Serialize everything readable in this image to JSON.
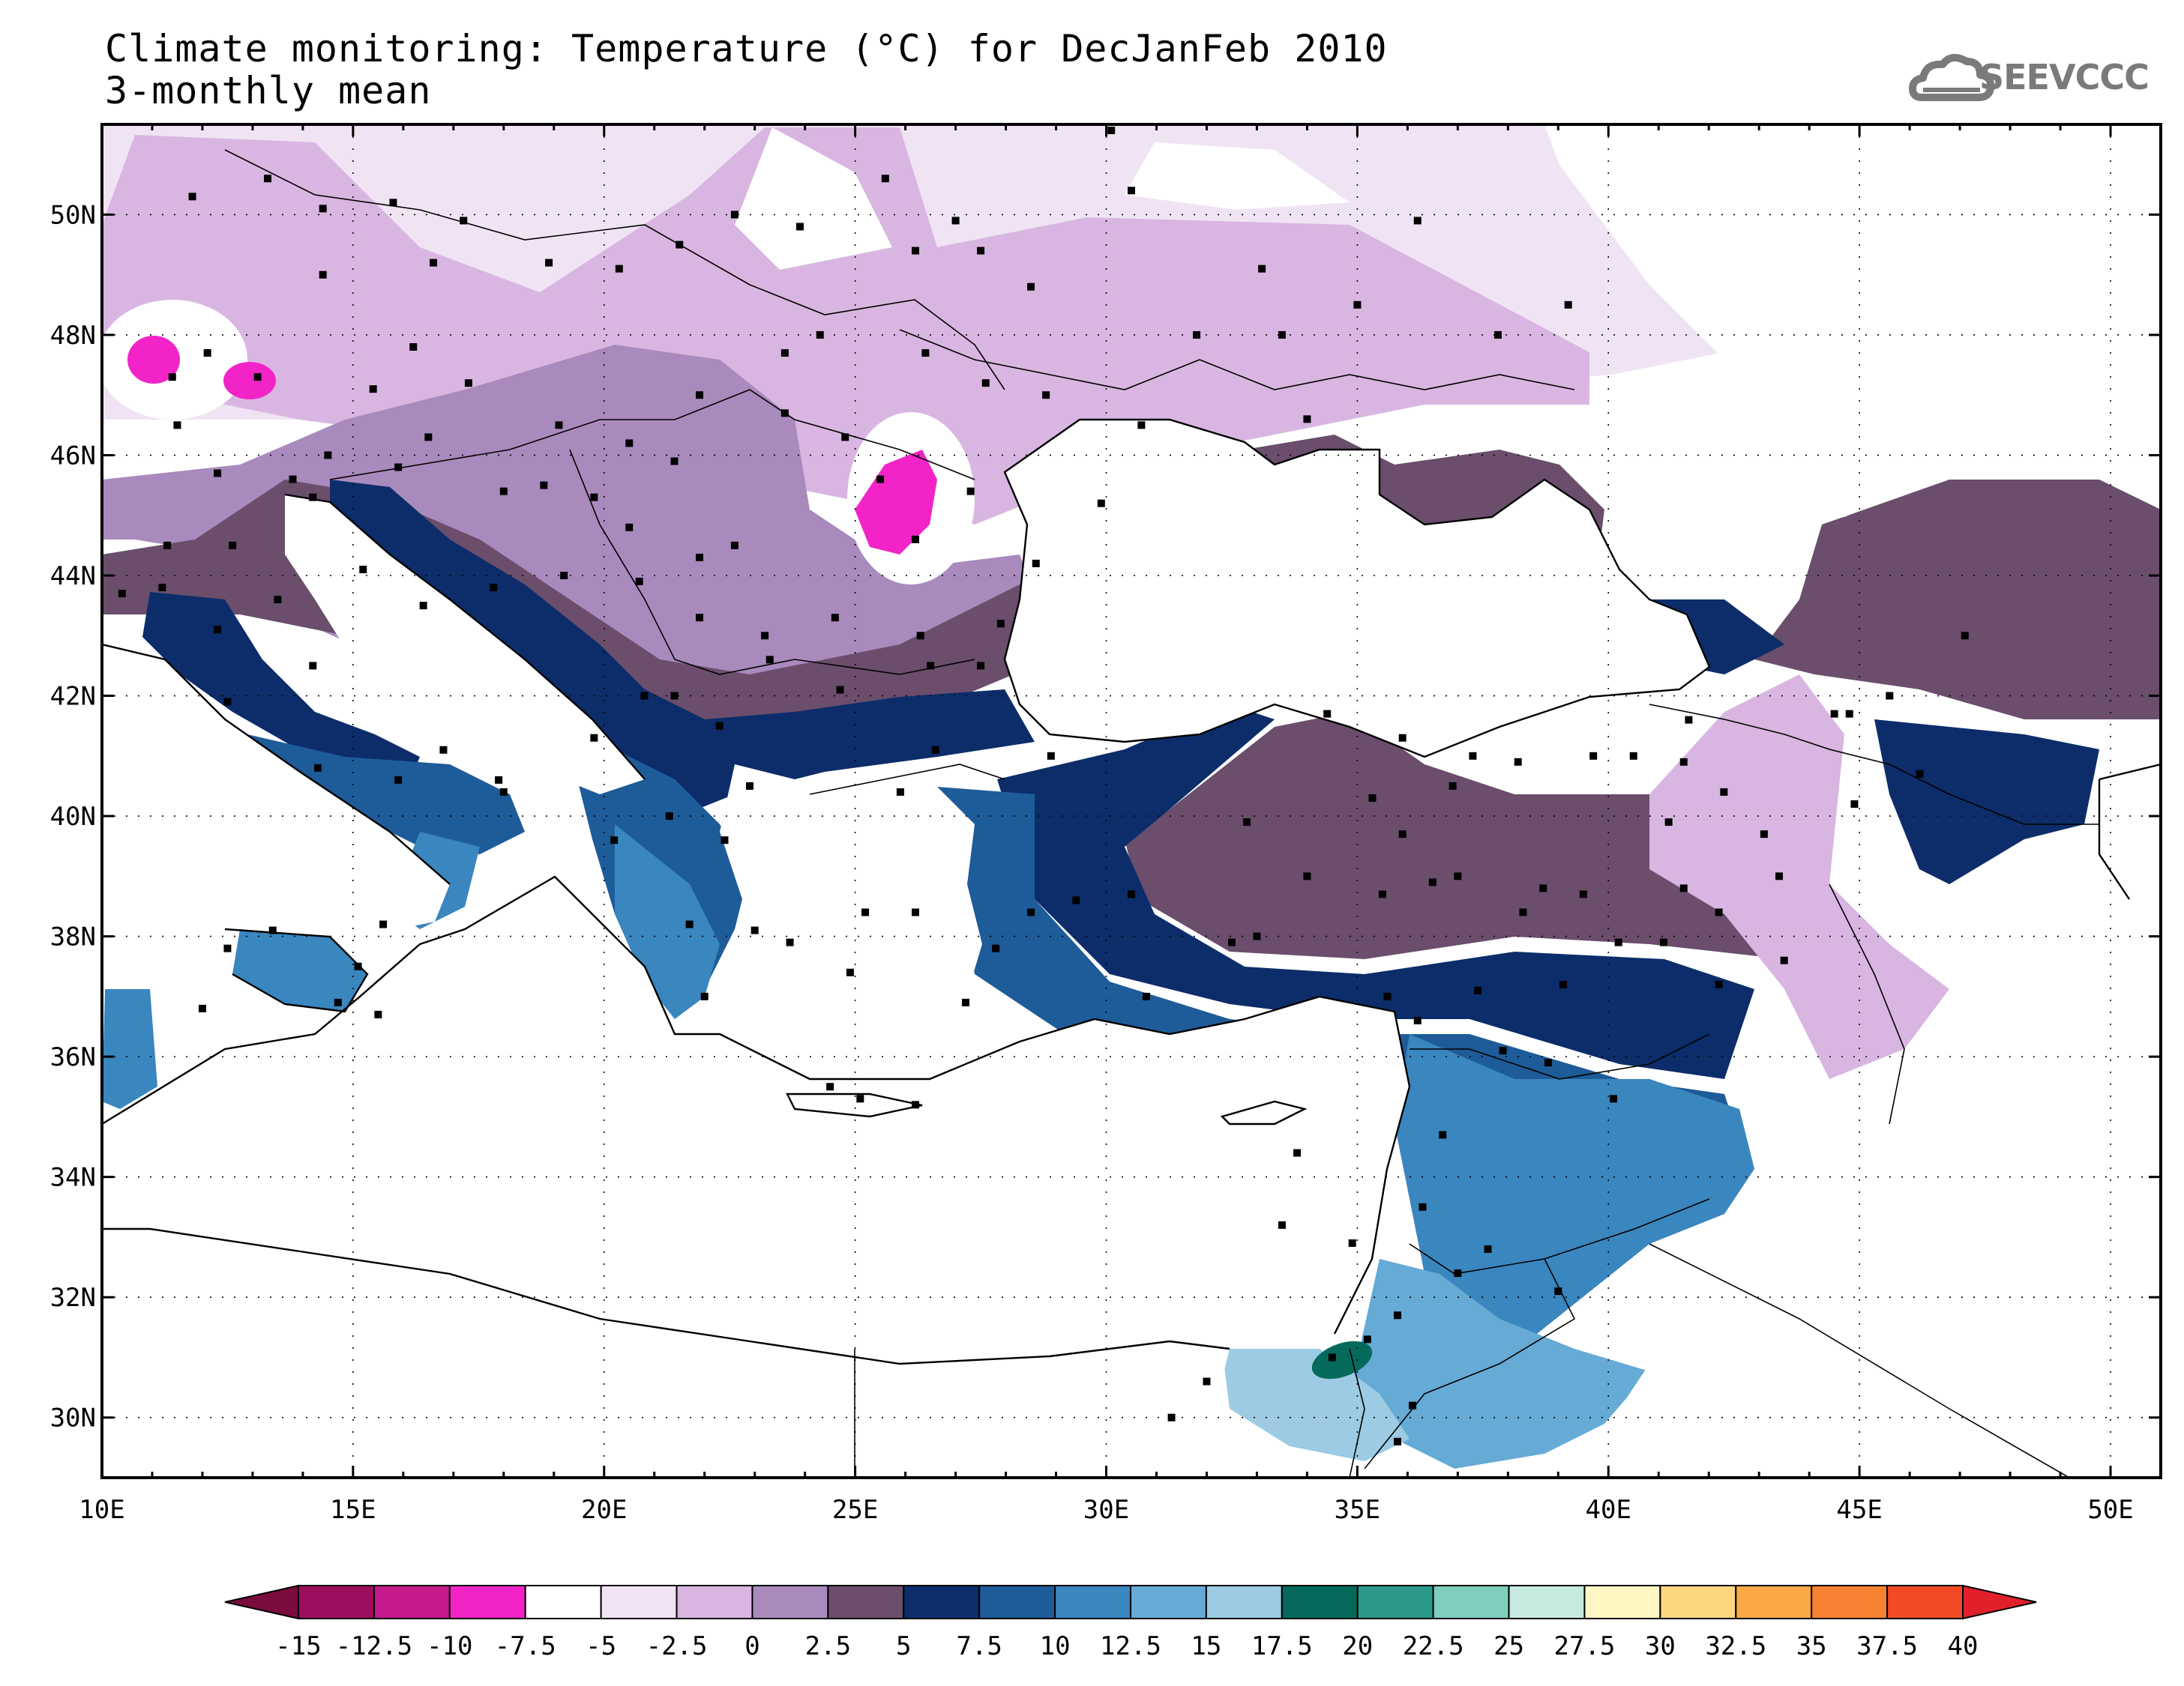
{
  "header": {
    "title_line1": "Climate monitoring: Temperature (°C) for DecJanFeb 2010",
    "title_line2": "3-monthly mean",
    "logo_text": "SEEVCCC"
  },
  "map": {
    "lon_range": [
      10,
      51
    ],
    "lat_range": [
      29,
      51.5
    ],
    "lon_ticks": [
      {
        "value": 10,
        "label": "10E"
      },
      {
        "value": 15,
        "label": "15E"
      },
      {
        "value": 20,
        "label": "20E"
      },
      {
        "value": 25,
        "label": "25E"
      },
      {
        "value": 30,
        "label": "30E"
      },
      {
        "value": 35,
        "label": "35E"
      },
      {
        "value": 40,
        "label": "40E"
      },
      {
        "value": 45,
        "label": "45E"
      },
      {
        "value": 50,
        "label": "50E"
      }
    ],
    "lat_ticks": [
      {
        "value": 30,
        "label": "30N"
      },
      {
        "value": 32,
        "label": "32N"
      },
      {
        "value": 34,
        "label": "34N"
      },
      {
        "value": 36,
        "label": "36N"
      },
      {
        "value": 38,
        "label": "38N"
      },
      {
        "value": 40,
        "label": "40N"
      },
      {
        "value": 42,
        "label": "42N"
      },
      {
        "value": 44,
        "label": "44N"
      },
      {
        "value": 46,
        "label": "46N"
      },
      {
        "value": 48,
        "label": "48N"
      },
      {
        "value": 50,
        "label": "50N"
      }
    ],
    "grid": "dotted"
  },
  "colorbar": {
    "labels": [
      "-15",
      "-12.5",
      "-10",
      "-7.5",
      "-5",
      "-2.5",
      "0",
      "2.5",
      "5",
      "7.5",
      "10",
      "12.5",
      "15",
      "17.5",
      "20",
      "22.5",
      "25",
      "27.5",
      "30",
      "32.5",
      "35",
      "37.5",
      "40"
    ],
    "low_extend_color": "#7a0c3d",
    "high_extend_color": "#e0202a",
    "colors": [
      "#9c0f5f",
      "#c41a8c",
      "#f224c8",
      "#ffffff",
      "#f0e4f4",
      "#d9b6e1",
      "#a98abd",
      "#6a4e6c",
      "#0c2d6a",
      "#1e5b99",
      "#3a86bf",
      "#66aad6",
      "#9ccbe3",
      "#056a5b",
      "#2b9a8a",
      "#7fcfbd",
      "#c6eadf",
      "#fff6c4",
      "#fdd680",
      "#fba946",
      "#f88231",
      "#f24a24"
    ]
  },
  "field": {
    "ocean": "#ffffff",
    "stations": [
      [
        11.8,
        50.3
      ],
      [
        13.3,
        50.6
      ],
      [
        14.4,
        50.1
      ],
      [
        15.8,
        50.2
      ],
      [
        17.2,
        49.9
      ],
      [
        18.9,
        49.2
      ],
      [
        14.4,
        49.0
      ],
      [
        16.6,
        49.2
      ],
      [
        20.3,
        49.1
      ],
      [
        21.5,
        49.5
      ],
      [
        22.6,
        50.0
      ],
      [
        23.9,
        49.8
      ],
      [
        25.6,
        50.6
      ],
      [
        27.0,
        49.9
      ],
      [
        26.2,
        49.4
      ],
      [
        27.5,
        49.4
      ],
      [
        28.5,
        48.8
      ],
      [
        30.5,
        50.4
      ],
      [
        33.1,
        49.1
      ],
      [
        35.0,
        48.5
      ],
      [
        36.2,
        49.9
      ],
      [
        37.8,
        48.0
      ],
      [
        39.2,
        48.5
      ],
      [
        33.5,
        48.0
      ],
      [
        31.8,
        48.0
      ],
      [
        34.0,
        46.6
      ],
      [
        30.7,
        46.5
      ],
      [
        28.8,
        47.0
      ],
      [
        27.6,
        47.2
      ],
      [
        26.4,
        47.7
      ],
      [
        23.6,
        47.7
      ],
      [
        24.3,
        48.0
      ],
      [
        21.9,
        47.0
      ],
      [
        20.5,
        46.2
      ],
      [
        19.1,
        46.5
      ],
      [
        17.3,
        47.2
      ],
      [
        16.2,
        47.8
      ],
      [
        15.4,
        47.1
      ],
      [
        13.1,
        47.3
      ],
      [
        11.4,
        47.3
      ],
      [
        12.1,
        47.7
      ],
      [
        11.5,
        46.5
      ],
      [
        12.3,
        45.7
      ],
      [
        13.8,
        45.6
      ],
      [
        14.5,
        46.0
      ],
      [
        15.9,
        45.8
      ],
      [
        16.5,
        46.3
      ],
      [
        18.0,
        45.4
      ],
      [
        18.8,
        45.5
      ],
      [
        19.8,
        45.3
      ],
      [
        20.5,
        44.8
      ],
      [
        21.9,
        44.3
      ],
      [
        22.6,
        44.5
      ],
      [
        20.7,
        43.9
      ],
      [
        21.9,
        43.3
      ],
      [
        23.2,
        43.0
      ],
      [
        24.6,
        43.3
      ],
      [
        26.3,
        43.0
      ],
      [
        27.9,
        43.2
      ],
      [
        28.6,
        44.2
      ],
      [
        29.9,
        45.2
      ],
      [
        26.2,
        44.6
      ],
      [
        25.5,
        45.6
      ],
      [
        23.6,
        46.7
      ],
      [
        21.4,
        45.9
      ],
      [
        19.2,
        44.0
      ],
      [
        17.8,
        43.8
      ],
      [
        16.4,
        43.5
      ],
      [
        15.2,
        44.1
      ],
      [
        14.2,
        45.3
      ],
      [
        12.6,
        44.5
      ],
      [
        11.3,
        44.5
      ],
      [
        10.4,
        43.7
      ],
      [
        11.2,
        43.8
      ],
      [
        12.3,
        43.1
      ],
      [
        13.5,
        43.6
      ],
      [
        14.2,
        42.5
      ],
      [
        12.5,
        41.9
      ],
      [
        14.3,
        40.8
      ],
      [
        15.9,
        40.6
      ],
      [
        16.8,
        41.1
      ],
      [
        18.0,
        40.4
      ],
      [
        15.6,
        38.2
      ],
      [
        13.4,
        38.1
      ],
      [
        15.1,
        37.5
      ],
      [
        14.7,
        36.9
      ],
      [
        15.5,
        36.7
      ],
      [
        12.5,
        37.8
      ],
      [
        12.0,
        36.8
      ],
      [
        17.9,
        40.6
      ],
      [
        19.8,
        41.3
      ],
      [
        20.8,
        42.0
      ],
      [
        21.4,
        42.0
      ],
      [
        22.3,
        41.5
      ],
      [
        23.3,
        42.6
      ],
      [
        24.7,
        42.1
      ],
      [
        26.5,
        42.5
      ],
      [
        27.5,
        42.5
      ],
      [
        28.9,
        41.0
      ],
      [
        26.6,
        41.1
      ],
      [
        25.9,
        40.4
      ],
      [
        22.9,
        40.5
      ],
      [
        21.3,
        40.0
      ],
      [
        20.2,
        39.6
      ],
      [
        22.4,
        39.6
      ],
      [
        23.0,
        38.1
      ],
      [
        21.7,
        38.2
      ],
      [
        23.7,
        37.9
      ],
      [
        25.2,
        38.4
      ],
      [
        26.2,
        38.4
      ],
      [
        24.9,
        37.4
      ],
      [
        22.0,
        37.0
      ],
      [
        25.1,
        35.3
      ],
      [
        24.5,
        35.5
      ],
      [
        26.2,
        35.2
      ],
      [
        27.2,
        36.9
      ],
      [
        27.8,
        37.8
      ],
      [
        28.5,
        38.4
      ],
      [
        29.4,
        38.6
      ],
      [
        30.5,
        38.7
      ],
      [
        30.8,
        37.0
      ],
      [
        32.5,
        37.9
      ],
      [
        33.0,
        38.0
      ],
      [
        34.0,
        39.0
      ],
      [
        32.8,
        39.9
      ],
      [
        35.5,
        38.7
      ],
      [
        35.9,
        39.7
      ],
      [
        36.9,
        40.5
      ],
      [
        35.9,
        41.3
      ],
      [
        34.4,
        41.7
      ],
      [
        37.3,
        41.0
      ],
      [
        38.2,
        40.9
      ],
      [
        39.7,
        41.0
      ],
      [
        40.5,
        41.0
      ],
      [
        41.5,
        40.9
      ],
      [
        42.3,
        40.4
      ],
      [
        41.2,
        39.9
      ],
      [
        43.1,
        39.7
      ],
      [
        43.4,
        39.0
      ],
      [
        41.5,
        38.8
      ],
      [
        42.2,
        38.4
      ],
      [
        39.5,
        38.7
      ],
      [
        38.3,
        38.4
      ],
      [
        37.0,
        39.0
      ],
      [
        37.4,
        37.1
      ],
      [
        39.1,
        37.2
      ],
      [
        40.2,
        37.9
      ],
      [
        41.1,
        37.9
      ],
      [
        42.2,
        37.2
      ],
      [
        43.5,
        37.6
      ],
      [
        44.9,
        40.2
      ],
      [
        46.2,
        40.7
      ],
      [
        44.5,
        41.7
      ],
      [
        45.6,
        42.0
      ],
      [
        47.1,
        43.0
      ],
      [
        44.8,
        41.7
      ],
      [
        41.6,
        41.6
      ],
      [
        36.2,
        36.6
      ],
      [
        35.6,
        37.0
      ],
      [
        37.9,
        36.1
      ],
      [
        38.8,
        35.9
      ],
      [
        40.1,
        35.3
      ],
      [
        36.7,
        34.7
      ],
      [
        36.3,
        33.5
      ],
      [
        37.0,
        32.4
      ],
      [
        39.0,
        32.1
      ],
      [
        35.8,
        31.7
      ],
      [
        34.9,
        32.9
      ],
      [
        35.2,
        31.3
      ],
      [
        36.1,
        30.2
      ],
      [
        35.8,
        29.6
      ],
      [
        37.6,
        32.8
      ],
      [
        34.5,
        31.0
      ],
      [
        33.5,
        33.2
      ],
      [
        32.0,
        30.6
      ],
      [
        31.3,
        30.0
      ],
      [
        33.8,
        34.4
      ],
      [
        35.3,
        40.3
      ],
      [
        36.5,
        38.9
      ],
      [
        38.7,
        38.8
      ],
      [
        24.8,
        46.3
      ],
      [
        30.1,
        51.4
      ],
      [
        27.3,
        45.4
      ]
    ]
  }
}
